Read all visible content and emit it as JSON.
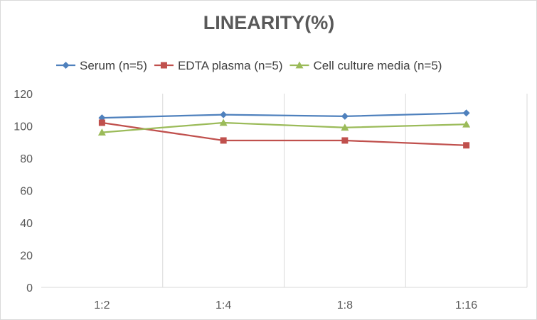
{
  "colors": {
    "background": "#ffffff",
    "grid": "#d9d9d9",
    "text": "#595959",
    "serum": "#4f81bd",
    "edta": "#c0504d",
    "cell": "#9bbb59"
  },
  "chart_data": {
    "type": "line",
    "title": "LINEARITY(%)",
    "xlabel": "",
    "ylabel": "",
    "categories": [
      "1:2",
      "1:4",
      "1:8",
      "1:16"
    ],
    "ylim": [
      0,
      120
    ],
    "yticks": [
      0,
      20,
      40,
      60,
      80,
      100,
      120
    ],
    "grid": "vertical",
    "legend_position": "top",
    "series": [
      {
        "name": "Serum (n=5)",
        "values": [
          105,
          107,
          106,
          108
        ],
        "marker": "diamond",
        "color": "#4f81bd"
      },
      {
        "name": "EDTA plasma (n=5)",
        "values": [
          102,
          91,
          91,
          88
        ],
        "marker": "square",
        "color": "#c0504d"
      },
      {
        "name": "Cell culture media (n=5)",
        "values": [
          96,
          102,
          99,
          101
        ],
        "marker": "triangle",
        "color": "#9bbb59"
      }
    ]
  }
}
